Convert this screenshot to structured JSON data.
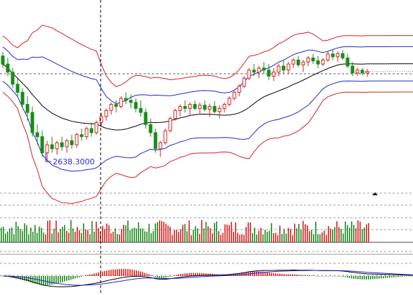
{
  "colors": {
    "candle_up": "#d42020",
    "candle_down": "#1a8a1a",
    "band_outer": "#d42020",
    "band_inner": "#2323d2",
    "band_mid": "#000000",
    "vol_up": "#d42020",
    "vol_down": "#1a8a1a",
    "macd_line": "#000000",
    "signal_line": "#2323d2",
    "grid": "#9a9a9a"
  },
  "annotations": {
    "low_label": "2638.3000"
  },
  "chart_data": {
    "type": "candlestick",
    "panels": [
      "price",
      "volume",
      "macd"
    ],
    "ylim": [
      2560,
      3030
    ],
    "low_marker_value": 2638.3,
    "grid": true,
    "candles": [
      [
        2900,
        2910,
        2870,
        2880
      ],
      [
        2880,
        2895,
        2850,
        2860
      ],
      [
        2860,
        2870,
        2820,
        2830
      ],
      [
        2830,
        2845,
        2800,
        2810
      ],
      [
        2810,
        2820,
        2770,
        2780
      ],
      [
        2780,
        2800,
        2740,
        2760
      ],
      [
        2760,
        2775,
        2700,
        2710
      ],
      [
        2710,
        2730,
        2680,
        2700
      ],
      [
        2700,
        2715,
        2650,
        2660
      ],
      [
        2660,
        2690,
        2638.3,
        2680
      ],
      [
        2680,
        2700,
        2660,
        2670
      ],
      [
        2670,
        2690,
        2655,
        2685
      ],
      [
        2685,
        2700,
        2665,
        2675
      ],
      [
        2675,
        2695,
        2660,
        2690
      ],
      [
        2690,
        2705,
        2670,
        2680
      ],
      [
        2680,
        2710,
        2672,
        2705
      ],
      [
        2705,
        2720,
        2690,
        2700
      ],
      [
        2700,
        2725,
        2692,
        2720
      ],
      [
        2720,
        2735,
        2700,
        2710
      ],
      [
        2710,
        2740,
        2705,
        2735
      ],
      [
        2735,
        2760,
        2725,
        2750
      ],
      [
        2750,
        2770,
        2740,
        2765
      ],
      [
        2765,
        2785,
        2755,
        2780
      ],
      [
        2780,
        2790,
        2760,
        2775
      ],
      [
        2775,
        2800,
        2770,
        2795
      ],
      [
        2795,
        2810,
        2780,
        2790
      ],
      [
        2790,
        2805,
        2770,
        2785
      ],
      [
        2785,
        2795,
        2760,
        2770
      ],
      [
        2770,
        2790,
        2750,
        2760
      ],
      [
        2760,
        2770,
        2720,
        2730
      ],
      [
        2730,
        2745,
        2700,
        2710
      ],
      [
        2710,
        2720,
        2660,
        2670
      ],
      [
        2670,
        2690,
        2650,
        2685
      ],
      [
        2685,
        2720,
        2680,
        2715
      ],
      [
        2715,
        2750,
        2710,
        2745
      ],
      [
        2745,
        2770,
        2740,
        2765
      ],
      [
        2765,
        2780,
        2750,
        2775
      ],
      [
        2775,
        2790,
        2760,
        2770
      ],
      [
        2770,
        2785,
        2755,
        2780
      ],
      [
        2780,
        2790,
        2765,
        2770
      ],
      [
        2770,
        2785,
        2755,
        2778
      ],
      [
        2778,
        2790,
        2762,
        2768
      ],
      [
        2768,
        2782,
        2750,
        2775
      ],
      [
        2775,
        2788,
        2758,
        2762
      ],
      [
        2762,
        2778,
        2745,
        2770
      ],
      [
        2770,
        2785,
        2760,
        2780
      ],
      [
        2780,
        2800,
        2775,
        2795
      ],
      [
        2795,
        2815,
        2790,
        2810
      ],
      [
        2810,
        2830,
        2800,
        2825
      ],
      [
        2825,
        2850,
        2820,
        2845
      ],
      [
        2845,
        2870,
        2840,
        2865
      ],
      [
        2865,
        2880,
        2850,
        2860
      ],
      [
        2860,
        2875,
        2845,
        2870
      ],
      [
        2870,
        2885,
        2855,
        2865
      ],
      [
        2865,
        2880,
        2840,
        2850
      ],
      [
        2850,
        2870,
        2838,
        2860
      ],
      [
        2860,
        2880,
        2850,
        2875
      ],
      [
        2875,
        2890,
        2855,
        2865
      ],
      [
        2865,
        2885,
        2855,
        2880
      ],
      [
        2880,
        2895,
        2870,
        2890
      ],
      [
        2890,
        2900,
        2872,
        2878
      ],
      [
        2878,
        2890,
        2860,
        2885
      ],
      [
        2885,
        2900,
        2875,
        2895
      ],
      [
        2895,
        2905,
        2880,
        2888
      ],
      [
        2888,
        2900,
        2870,
        2880
      ],
      [
        2880,
        2895,
        2875,
        2890
      ],
      [
        2890,
        2910,
        2885,
        2905
      ],
      [
        2905,
        2915,
        2890,
        2898
      ],
      [
        2898,
        2912,
        2885,
        2906
      ],
      [
        2906,
        2915,
        2890,
        2895
      ],
      [
        2895,
        2905,
        2870,
        2875
      ],
      [
        2875,
        2885,
        2850,
        2858
      ],
      [
        2858,
        2872,
        2850,
        2865
      ],
      [
        2865,
        2870,
        2852,
        2858
      ],
      [
        2858,
        2868,
        2848,
        2862
      ]
    ]
  }
}
